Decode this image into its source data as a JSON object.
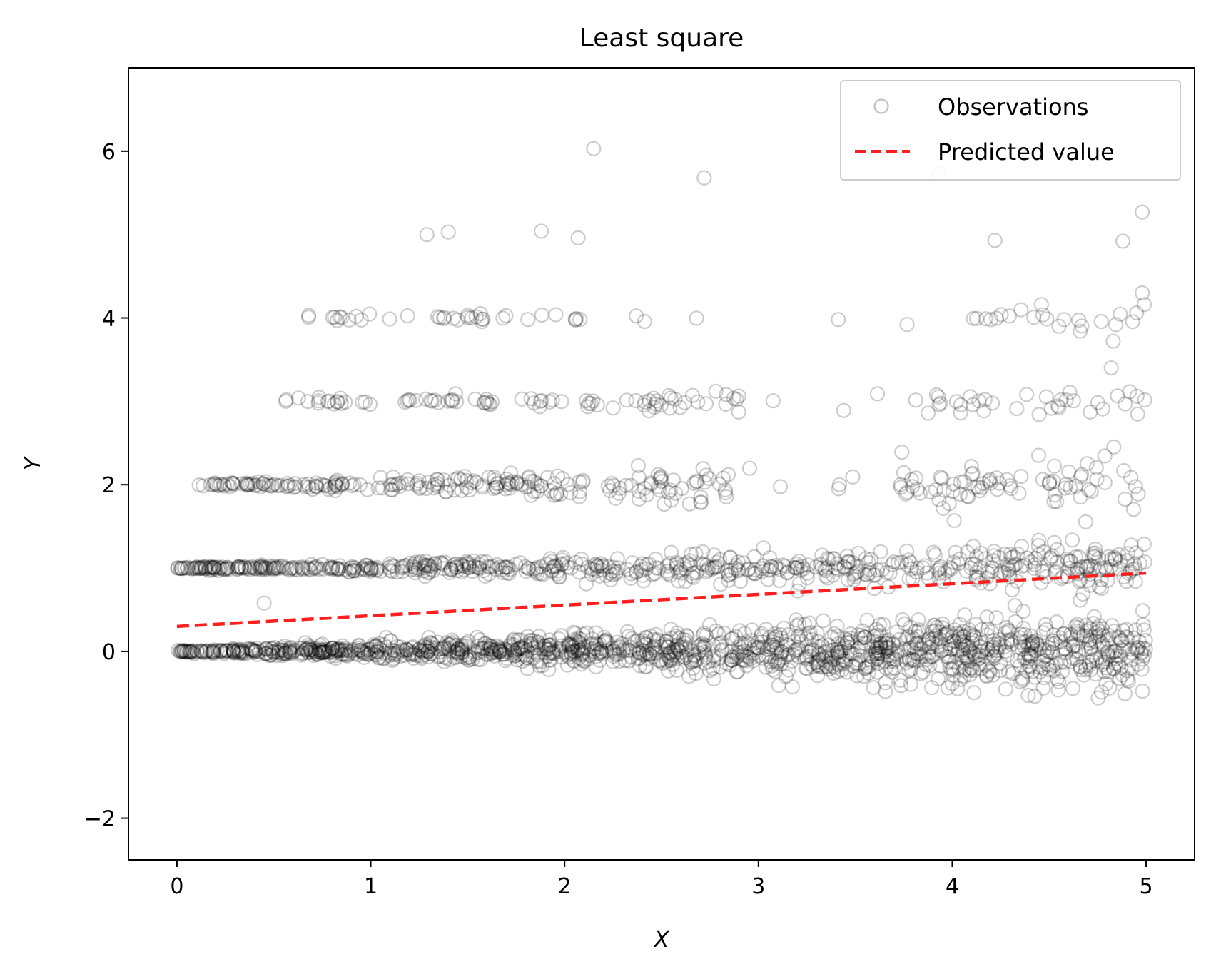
{
  "chart_data": {
    "type": "scatter",
    "title": "Least square",
    "xlabel": "X",
    "ylabel": "Y",
    "xlim": [
      -0.25,
      5.25
    ],
    "ylim": [
      -2.5,
      7.0
    ],
    "xticks": [
      0,
      1,
      2,
      3,
      4,
      5
    ],
    "yticks": [
      -2,
      0,
      2,
      4,
      6
    ],
    "xtick_labels": [
      "0",
      "1",
      "2",
      "3",
      "4",
      "5"
    ],
    "ytick_labels": [
      "−2",
      "0",
      "2",
      "4",
      "6"
    ],
    "grid": false,
    "legend": {
      "position": "top-right",
      "entries": [
        "Observations",
        "Predicted value"
      ]
    },
    "series": [
      {
        "name": "Observations",
        "kind": "scatter",
        "marker": "open-circle",
        "color": "#000000",
        "alpha": 0.2,
        "levels": [
          {
            "y": 0,
            "count": 1400,
            "x_range": [
              0.0,
              5.0
            ],
            "spread_growth": 0.045
          },
          {
            "y": 1,
            "count": 640,
            "x_range": [
              0.0,
              5.0
            ],
            "spread_growth": 0.028
          },
          {
            "y": 2,
            "count": 300,
            "x_range": [
              0.1,
              5.0
            ],
            "spread_growth": 0.035,
            "gap": [
              2.85,
              3.7
            ]
          },
          {
            "y": 3,
            "count": 120,
            "x_range": [
              0.55,
              5.0
            ],
            "spread_growth": 0.02,
            "gap": [
              2.9,
              3.8
            ]
          },
          {
            "y": 4,
            "count": 60,
            "x_range": [
              0.6,
              5.0
            ],
            "spread_growth": 0.015,
            "gap": [
              2.5,
              4.1
            ]
          }
        ],
        "outliers": [
          {
            "x": 2.15,
            "y": 6.03
          },
          {
            "x": 2.72,
            "y": 5.68
          },
          {
            "x": 3.93,
            "y": 5.73
          },
          {
            "x": 4.98,
            "y": 5.27
          },
          {
            "x": 1.29,
            "y": 5.0
          },
          {
            "x": 1.4,
            "y": 5.03
          },
          {
            "x": 1.88,
            "y": 5.04
          },
          {
            "x": 2.07,
            "y": 4.96
          },
          {
            "x": 4.22,
            "y": 4.93
          },
          {
            "x": 4.88,
            "y": 4.92
          },
          {
            "x": 0.45,
            "y": 0.58
          },
          {
            "x": 0.68,
            "y": 4.03
          },
          {
            "x": 3.44,
            "y": 2.89
          },
          {
            "x": 2.78,
            "y": 3.12
          },
          {
            "x": 2.66,
            "y": 3.07
          },
          {
            "x": 4.82,
            "y": 3.4
          },
          {
            "x": 4.83,
            "y": 3.72
          },
          {
            "x": 4.66,
            "y": 3.84
          },
          {
            "x": 3.74,
            "y": 2.39
          },
          {
            "x": 4.01,
            "y": 1.57
          },
          {
            "x": 4.98,
            "y": 4.3
          },
          {
            "x": 4.99,
            "y": 4.16
          },
          {
            "x": 4.46,
            "y": 4.16
          }
        ]
      },
      {
        "name": "Predicted value",
        "kind": "line",
        "style": "dashed",
        "color": "#ff1f1f",
        "x": [
          0,
          5
        ],
        "y": [
          0.3,
          0.94
        ]
      }
    ]
  }
}
